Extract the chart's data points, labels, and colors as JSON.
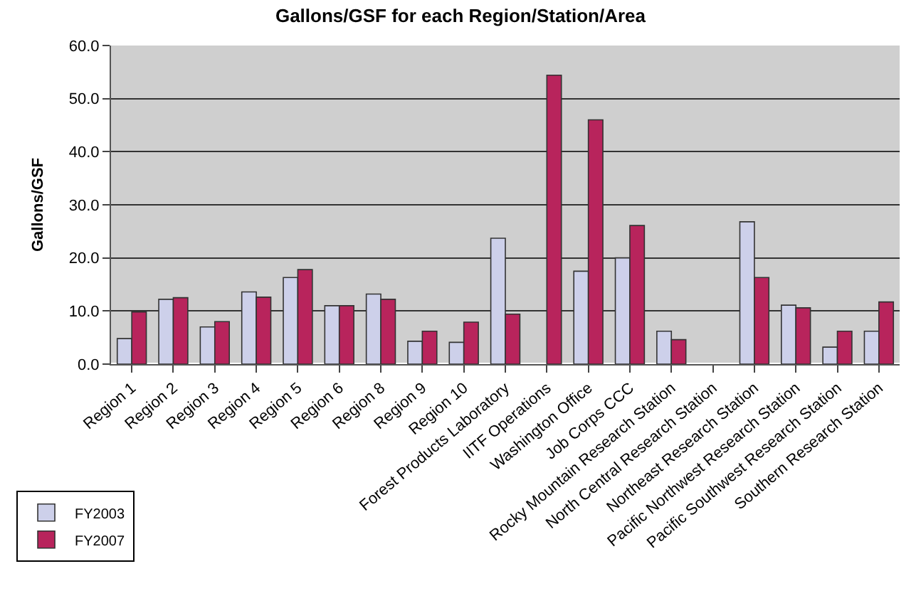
{
  "chart_data": {
    "type": "bar",
    "title": "Gallons/GSF for each Region/Station/Area",
    "ylabel": "Gallons/GSF",
    "categories": [
      "Region 1",
      "Region 2",
      "Region 3",
      "Region 4",
      "Region 5",
      "Region 6",
      "Region 8",
      "Region 9",
      "Region 10",
      "Forest Products Laboratory",
      "IITF Operations",
      "Washington Office",
      "Job Corps CCC",
      "Rocky Mountain Research Station",
      "North Central Research Station",
      "Northeast Research Station",
      "Pacific Northwest Research Station",
      "Pacific Southwest Research Station",
      "Southern Research Station"
    ],
    "series": [
      {
        "name": "FY2003",
        "color": "#cdd0ea",
        "values": [
          4.8,
          12.2,
          7.0,
          13.6,
          16.3,
          11.0,
          13.2,
          4.3,
          4.1,
          23.7,
          null,
          17.5,
          20.0,
          6.2,
          null,
          26.8,
          11.1,
          3.2,
          6.2
        ]
      },
      {
        "name": "FY2007",
        "color": "#b8245c",
        "values": [
          9.8,
          12.5,
          8.0,
          12.6,
          17.8,
          11.0,
          12.2,
          6.2,
          7.9,
          9.4,
          54.4,
          46.0,
          26.1,
          4.6,
          null,
          16.3,
          10.6,
          6.2,
          11.7
        ]
      }
    ],
    "ylim": [
      0,
      60
    ],
    "yticks": [
      {
        "value": 0,
        "label": "0.0"
      },
      {
        "value": 10,
        "label": "10.0"
      },
      {
        "value": 20,
        "label": "20.0"
      },
      {
        "value": 30,
        "label": "30.0"
      },
      {
        "value": 40,
        "label": "40.0"
      },
      {
        "value": 50,
        "label": "50.0"
      },
      {
        "value": 60,
        "label": "60.0"
      }
    ],
    "grid": "y",
    "legend": "bottom left"
  }
}
